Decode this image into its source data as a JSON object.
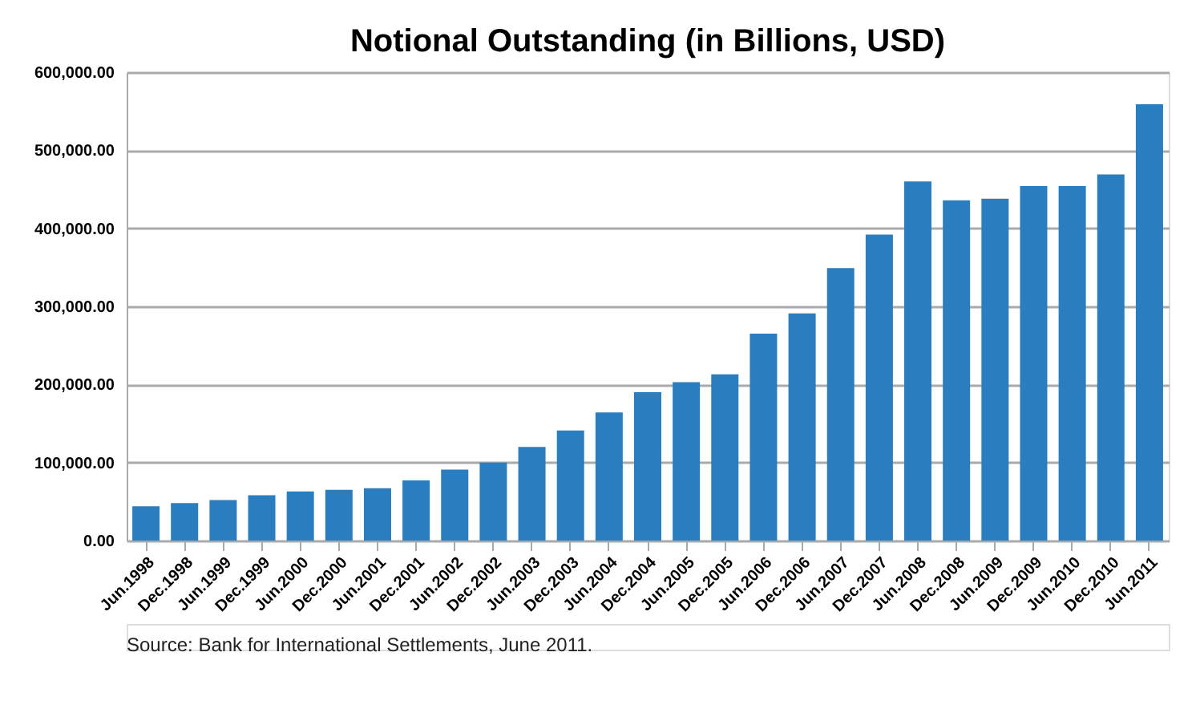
{
  "chart_data": {
    "type": "bar",
    "title": "Notional Outstanding (in Billions, USD)",
    "categories": [
      "Jun.1998",
      "Dec.1998",
      "Jun.1999",
      "Dec.1999",
      "Jun.2000",
      "Dec.2000",
      "Jun.2001",
      "Dec.2001",
      "Jun.2002",
      "Dec.2002",
      "Jun.2003",
      "Dec.2003",
      "Jun.2004",
      "Dec.2004",
      "Jun.2005",
      "Dec.2005",
      "Jun.2006",
      "Dec.2006",
      "Jun.2007",
      "Dec.2007",
      "Jun.2008",
      "Dec.2008",
      "Jun.2009",
      "Dec.2009",
      "Jun.2010",
      "Dec.2010",
      "Jun.2011"
    ],
    "values": [
      44000,
      48000,
      52000,
      58000,
      63000,
      65000,
      67000,
      77000,
      91000,
      100000,
      120000,
      141000,
      164000,
      190000,
      203000,
      213000,
      265000,
      291000,
      349000,
      392000,
      460000,
      436000,
      438000,
      454000,
      454000,
      469000,
      559000
    ],
    "color": "#2a7dbf",
    "ylim": [
      0,
      600000
    ],
    "yticks": [
      {
        "value": 0,
        "label": "0.00"
      },
      {
        "value": 100000,
        "label": "100,000.00"
      },
      {
        "value": 200000,
        "label": "200,000.00"
      },
      {
        "value": 300000,
        "label": "300,000.00"
      },
      {
        "value": 400000,
        "label": "400,000.00"
      },
      {
        "value": 500000,
        "label": "500,000.00"
      },
      {
        "value": 600000,
        "label": "600,000.00"
      }
    ],
    "grid": "y",
    "annotations": [
      "Source: Bank for International Settlements, June 2011."
    ]
  }
}
